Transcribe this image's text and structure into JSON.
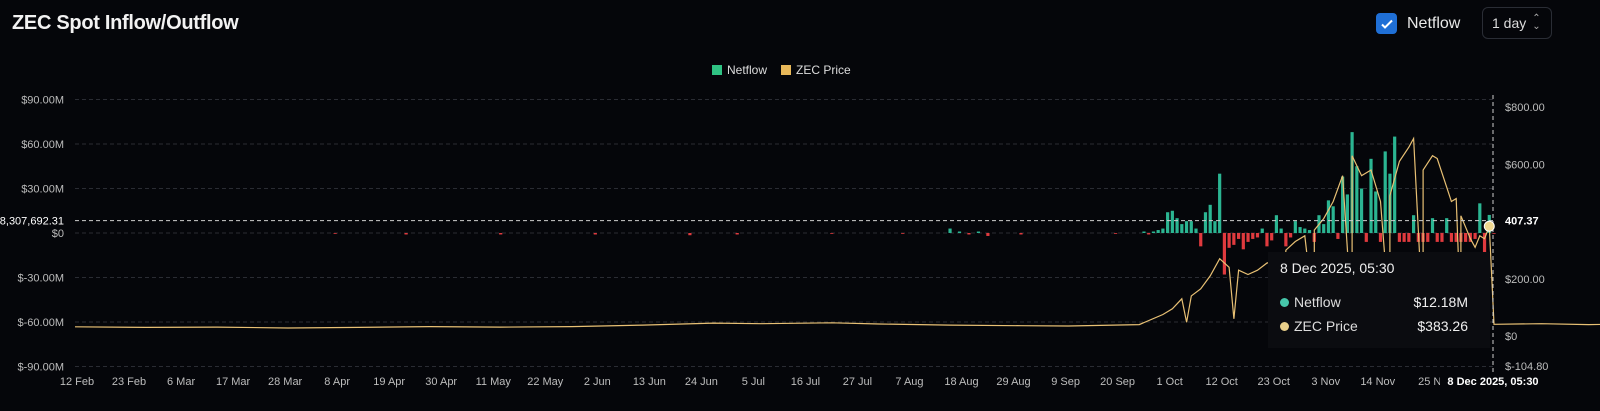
{
  "header": {
    "title": "ZEC Spot Inflow/Outflow",
    "toggle_label": "Netflow",
    "toggle_checked": true,
    "interval": "1 day"
  },
  "tooltip": {
    "date": "8 Dec 2025, 05:30",
    "rows": [
      {
        "label": "Netflow",
        "value": "$12.18M"
      },
      {
        "label": "ZEC Price",
        "value": "$383.26"
      }
    ]
  },
  "crosshair": {
    "left_value": "8,307,692.31",
    "right_value": "407.37",
    "x_label": "8 Dec 2025, 05:30"
  },
  "chart_data": {
    "type": "bar+line",
    "title": "ZEC Spot Inflow/Outflow",
    "legend": [
      "Netflow",
      "ZEC Price"
    ],
    "legend_position": "top-center",
    "colors": {
      "positive": "#2bb592",
      "negative": "#e03a3e",
      "price": "#e8c074",
      "legend_netflow": "#2fc283",
      "legend_price": "#e8b85a"
    },
    "left_axis": {
      "ticks": [
        "$90.00M",
        "$60.00M",
        "$30.00M",
        "$0",
        "$-30.00M",
        "$-60.00M",
        "$-90.00M"
      ],
      "values": [
        90,
        60,
        30,
        0,
        -30,
        -60,
        -90
      ],
      "ylim": [
        -90,
        90
      ],
      "unit": "M USD"
    },
    "right_axis": {
      "ticks": [
        "$800.00",
        "$600.00",
        "$200.00",
        "$0",
        "$-104.80"
      ],
      "values": [
        800,
        600,
        200,
        0,
        -104.8
      ]
    },
    "x_ticks": [
      "12 Feb",
      "23 Feb",
      "6 Mar",
      "17 Mar",
      "28 Mar",
      "8 Apr",
      "19 Apr",
      "30 Apr",
      "11 May",
      "22 May",
      "2 Jun",
      "13 Jun",
      "24 Jun",
      "5 Jul",
      "16 Jul",
      "27 Jul",
      "7 Aug",
      "18 Aug",
      "29 Aug",
      "9 Sep",
      "20 Sep",
      "1 Oct",
      "12 Oct",
      "23 Oct",
      "3 Nov",
      "14 Nov",
      "25 N"
    ],
    "x_tick_step_days": 11,
    "netflow_by_day": [
      [
        55,
        -0.5
      ],
      [
        70,
        -1
      ],
      [
        90,
        -1
      ],
      [
        110,
        -1
      ],
      [
        130,
        -1.5
      ],
      [
        140,
        -1
      ],
      [
        160,
        -0.5
      ],
      [
        175,
        -0.5
      ],
      [
        185,
        3
      ],
      [
        187,
        1
      ],
      [
        189,
        -1
      ],
      [
        191,
        1
      ],
      [
        193,
        -2
      ],
      [
        200,
        -1
      ],
      [
        220,
        -0.5
      ],
      [
        240,
        0.5
      ],
      [
        300,
        -0.5
      ],
      [
        390,
        -0.5
      ],
      [
        420,
        -1
      ],
      [
        460,
        -0.5
      ],
      [
        226,
        1
      ],
      [
        227,
        -1
      ],
      [
        228,
        1
      ],
      [
        229,
        2
      ],
      [
        230,
        3
      ],
      [
        231,
        14
      ],
      [
        232,
        15
      ],
      [
        233,
        10
      ],
      [
        234,
        6
      ],
      [
        235,
        8
      ],
      [
        236,
        8
      ],
      [
        237,
        3
      ],
      [
        238,
        -9
      ],
      [
        239,
        14
      ],
      [
        240,
        19
      ],
      [
        241,
        8
      ],
      [
        242,
        40
      ],
      [
        243,
        -28
      ],
      [
        244,
        -10
      ],
      [
        245,
        -8
      ],
      [
        246,
        -4
      ],
      [
        247,
        -11
      ],
      [
        248,
        -6
      ],
      [
        249,
        -4
      ],
      [
        250,
        -3
      ],
      [
        251,
        3
      ],
      [
        252,
        -9
      ],
      [
        253,
        -5
      ],
      [
        254,
        12
      ],
      [
        255,
        3
      ],
      [
        256,
        -9
      ],
      [
        257,
        -3
      ],
      [
        258,
        8
      ],
      [
        259,
        4
      ],
      [
        260,
        3
      ],
      [
        261,
        2
      ],
      [
        262,
        -6
      ],
      [
        263,
        12
      ],
      [
        264,
        6
      ],
      [
        265,
        22
      ],
      [
        266,
        18
      ],
      [
        267,
        -4
      ],
      [
        268,
        38
      ],
      [
        269,
        26
      ],
      [
        270,
        68
      ],
      [
        271,
        45
      ],
      [
        272,
        30
      ],
      [
        273,
        -6
      ],
      [
        274,
        50
      ],
      [
        275,
        28
      ],
      [
        276,
        -6
      ],
      [
        277,
        55
      ],
      [
        278,
        40
      ],
      [
        279,
        65
      ],
      [
        280,
        -6
      ],
      [
        281,
        -6
      ],
      [
        282,
        -6
      ],
      [
        283,
        12
      ],
      [
        284,
        -6
      ],
      [
        285,
        -6
      ],
      [
        286,
        -6
      ],
      [
        287,
        10
      ],
      [
        288,
        -6
      ],
      [
        289,
        -6
      ],
      [
        290,
        10
      ],
      [
        291,
        -6
      ],
      [
        292,
        -6
      ],
      [
        293,
        -6
      ],
      [
        294,
        -6
      ],
      [
        295,
        -6
      ],
      [
        296,
        -4
      ],
      [
        297,
        20
      ],
      [
        298,
        -18
      ],
      [
        299,
        12.18
      ]
    ],
    "price_by_day": [
      [
        0,
        32
      ],
      [
        15,
        30
      ],
      [
        30,
        31
      ],
      [
        45,
        28
      ],
      [
        60,
        30
      ],
      [
        75,
        33
      ],
      [
        90,
        31
      ],
      [
        105,
        33
      ],
      [
        120,
        38
      ],
      [
        135,
        45
      ],
      [
        145,
        43
      ],
      [
        160,
        46
      ],
      [
        170,
        42
      ],
      [
        185,
        38
      ],
      [
        200,
        36
      ],
      [
        210,
        35
      ],
      [
        225,
        40
      ],
      [
        235,
        48
      ],
      [
        245,
        60
      ],
      [
        255,
        58
      ],
      [
        262,
        60
      ],
      [
        270,
        50
      ],
      [
        278,
        48
      ],
      [
        285,
        45
      ],
      [
        293,
        43
      ],
      [
        300,
        41
      ],
      [
        310,
        43
      ],
      [
        320,
        40
      ],
      [
        330,
        42
      ],
      [
        340,
        38
      ],
      [
        350,
        37
      ],
      [
        360,
        38
      ],
      [
        375,
        40
      ],
      [
        390,
        42
      ],
      [
        400,
        45
      ],
      [
        405,
        60
      ],
      [
        410,
        70
      ],
      [
        230,
        75
      ],
      [
        232,
        95
      ],
      [
        234,
        130
      ],
      [
        236,
        140
      ],
      [
        238,
        165
      ],
      [
        240,
        210
      ],
      [
        242,
        270
      ],
      [
        244,
        240
      ],
      [
        246,
        230
      ],
      [
        248,
        215
      ],
      [
        250,
        230
      ],
      [
        252,
        255
      ],
      [
        254,
        260
      ],
      [
        256,
        300
      ],
      [
        258,
        330
      ],
      [
        260,
        350
      ],
      [
        262,
        370
      ],
      [
        264,
        410
      ],
      [
        266,
        470
      ],
      [
        268,
        560
      ],
      [
        270,
        630
      ],
      [
        272,
        560
      ],
      [
        274,
        580
      ],
      [
        276,
        470
      ],
      [
        278,
        490
      ],
      [
        280,
        610
      ],
      [
        282,
        660
      ],
      [
        283,
        690
      ],
      [
        285,
        580
      ],
      [
        287,
        630
      ],
      [
        288,
        620
      ],
      [
        290,
        520
      ],
      [
        291,
        470
      ],
      [
        292,
        480
      ],
      [
        293,
        420
      ],
      [
        295,
        340
      ],
      [
        296,
        310
      ],
      [
        297,
        350
      ],
      [
        298,
        340
      ],
      [
        299,
        383.26
      ]
    ]
  }
}
